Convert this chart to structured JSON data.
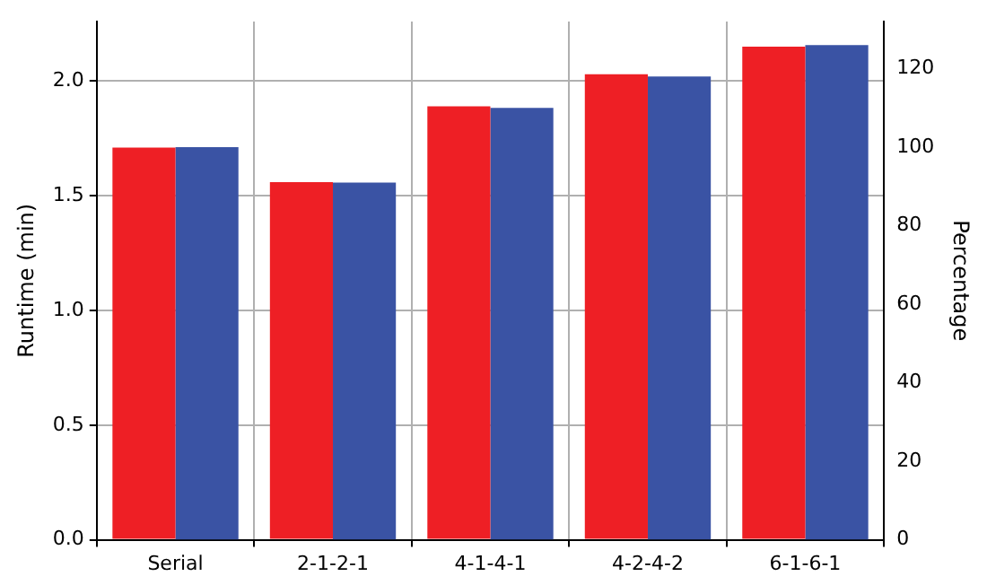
{
  "chart_data": {
    "type": "bar",
    "ylabel": "Runtime (min)",
    "y2label": "Percentage",
    "categories": [
      "Serial",
      "2-1-2-1",
      "4-1-4-1",
      "4-2-4-2",
      "6-1-6-1"
    ],
    "series": [
      {
        "color": "#ee1f25",
        "values": [
          1.71,
          1.56,
          1.89,
          2.03,
          2.15
        ]
      },
      {
        "color": "#3a53a4",
        "axis": "y2",
        "values": [
          100,
          91,
          110,
          118,
          126
        ]
      }
    ],
    "ylim": [
      0,
      2.26
    ],
    "yticks": [
      {
        "value": 0,
        "label": "0.0"
      },
      {
        "value": 0.5,
        "label": "0.5"
      },
      {
        "value": 1,
        "label": "1.0"
      },
      {
        "value": 1.5,
        "label": "1.5"
      },
      {
        "value": 2,
        "label": "2.0"
      }
    ],
    "y2lim": [
      0,
      132
    ],
    "y2ticks": [
      0,
      20,
      40,
      60,
      80,
      100,
      120
    ],
    "grid": true,
    "legend": false
  }
}
